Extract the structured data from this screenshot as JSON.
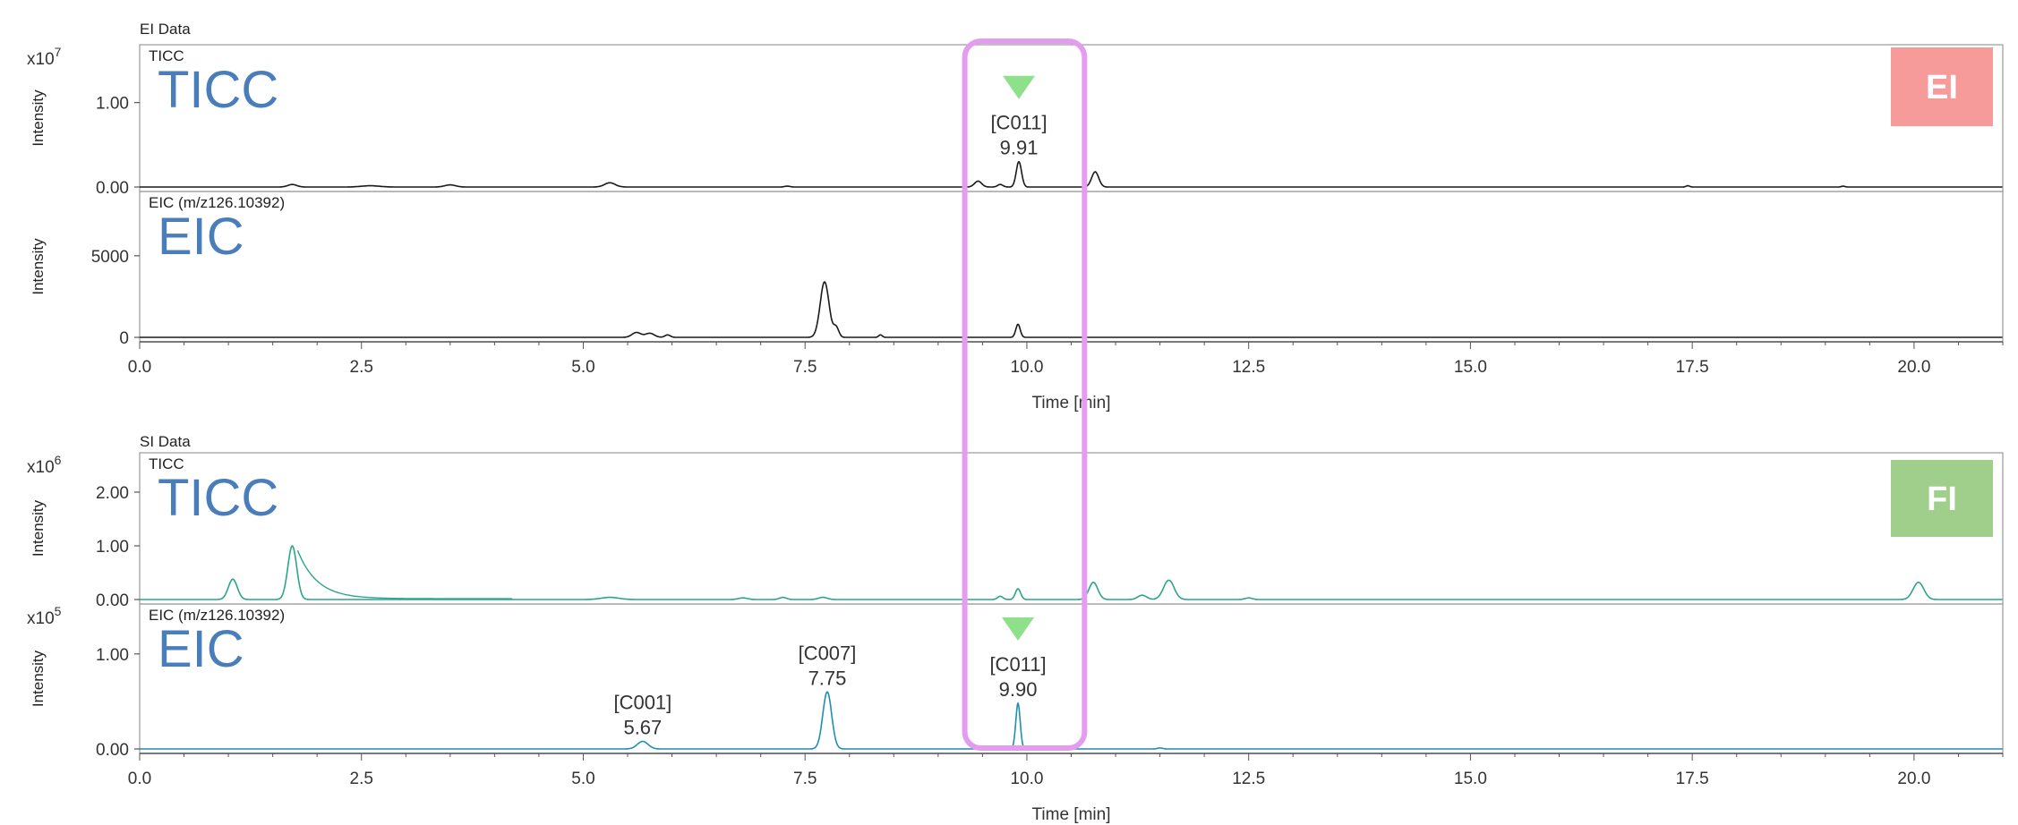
{
  "colors": {
    "ei_trace": "#1a1a1a",
    "si_trace": "#2aa58a",
    "si_eic_trace": "#1f8fb0",
    "peak_marker": "#8fe08a",
    "highlight_box": "#e49cf0",
    "ei_badge": "#f79a9a",
    "fi_badge": "#9fcf8a",
    "big_label": "#4a7ebb",
    "axis": "#555555"
  },
  "highlight": {
    "x_range": [
      9.3,
      10.65
    ]
  },
  "chart_data": [
    {
      "type": "line",
      "group_title": "EI Data",
      "badge": "EI",
      "xlabel": "Time [min]",
      "xlim": [
        0,
        21
      ],
      "xticks": [
        "0.0",
        "2.5",
        "5.0",
        "7.5",
        "10.0",
        "12.5",
        "15.0",
        "17.5",
        "20.0"
      ],
      "panels": [
        {
          "trace_label": "TICC",
          "big_label": "TICC",
          "ylabel": "Intensity",
          "exponent_base": "x10",
          "exponent_power": "7",
          "ylim": [
            0,
            1.6
          ],
          "yticks": [
            {
              "v": 0,
              "t": "0.00"
            },
            {
              "v": 1.0,
              "t": "1.00"
            }
          ],
          "color": "ei_trace",
          "peaks": [
            {
              "x": 1.72,
              "h": 0.03,
              "w": 0.05
            },
            {
              "x": 2.6,
              "h": 0.015,
              "w": 0.1
            },
            {
              "x": 3.5,
              "h": 0.025,
              "w": 0.06
            },
            {
              "x": 5.3,
              "h": 0.05,
              "w": 0.06
            },
            {
              "x": 7.3,
              "h": 0.01,
              "w": 0.03
            },
            {
              "x": 9.45,
              "h": 0.07,
              "w": 0.04
            },
            {
              "x": 9.7,
              "h": 0.03,
              "w": 0.03
            },
            {
              "x": 9.91,
              "h": 0.3,
              "w": 0.03
            },
            {
              "x": 10.77,
              "h": 0.18,
              "w": 0.04
            },
            {
              "x": 17.45,
              "h": 0.015,
              "w": 0.02
            },
            {
              "x": 19.2,
              "h": 0.01,
              "w": 0.02
            }
          ],
          "annotations": [
            {
              "x": 9.91,
              "id": "[C011]",
              "rt": "9.91",
              "marker": true
            }
          ]
        },
        {
          "trace_label": "EIC (m/z126.10392)",
          "big_label": "EIC",
          "ylabel": "Intensity",
          "exponent_base": "",
          "exponent_power": "",
          "ylim": [
            0,
            8500
          ],
          "yticks": [
            {
              "v": 0,
              "t": "0"
            },
            {
              "v": 5000,
              "t": "5000"
            }
          ],
          "color": "ei_trace",
          "peaks": [
            {
              "x": 5.6,
              "h": 300,
              "w": 0.05
            },
            {
              "x": 5.75,
              "h": 250,
              "w": 0.05
            },
            {
              "x": 5.95,
              "h": 150,
              "w": 0.03
            },
            {
              "x": 7.72,
              "h": 3400,
              "w": 0.05
            },
            {
              "x": 7.85,
              "h": 600,
              "w": 0.03
            },
            {
              "x": 8.35,
              "h": 150,
              "w": 0.02
            },
            {
              "x": 9.9,
              "h": 800,
              "w": 0.025
            }
          ],
          "annotations": []
        }
      ]
    },
    {
      "type": "line",
      "group_title": "SI Data",
      "badge": "FI",
      "xlabel": "Time [min]",
      "xlim": [
        0,
        21
      ],
      "xticks": [
        "0.0",
        "2.5",
        "5.0",
        "7.5",
        "10.0",
        "12.5",
        "15.0",
        "17.5",
        "20.0"
      ],
      "panels": [
        {
          "trace_label": "TICC",
          "big_label": "TICC",
          "ylabel": "Intensity",
          "exponent_base": "x10",
          "exponent_power": "6",
          "ylim": [
            0,
            2.6
          ],
          "yticks": [
            {
              "v": 0,
              "t": "0.00"
            },
            {
              "v": 1.0,
              "t": "1.00"
            },
            {
              "v": 2.0,
              "t": "2.00"
            }
          ],
          "color": "si_trace",
          "peaks": [
            {
              "x": 1.05,
              "h": 0.38,
              "w": 0.05
            },
            {
              "x": 1.72,
              "h": 1.0,
              "w": 0.05
            },
            {
              "x": 5.3,
              "h": 0.04,
              "w": 0.1
            },
            {
              "x": 6.8,
              "h": 0.03,
              "w": 0.05
            },
            {
              "x": 7.25,
              "h": 0.04,
              "w": 0.04
            },
            {
              "x": 7.7,
              "h": 0.04,
              "w": 0.05
            },
            {
              "x": 9.7,
              "h": 0.06,
              "w": 0.03
            },
            {
              "x": 9.9,
              "h": 0.2,
              "w": 0.03
            },
            {
              "x": 10.75,
              "h": 0.32,
              "w": 0.05
            },
            {
              "x": 11.3,
              "h": 0.08,
              "w": 0.05
            },
            {
              "x": 11.6,
              "h": 0.36,
              "w": 0.06
            },
            {
              "x": 12.5,
              "h": 0.03,
              "w": 0.04
            },
            {
              "x": 20.05,
              "h": 0.32,
              "w": 0.06
            }
          ],
          "annotations": []
        },
        {
          "trace_label": "EIC (m/z126.10392)",
          "big_label": "EIC",
          "ylabel": "Intensity",
          "exponent_base": "x10",
          "exponent_power": "5",
          "ylim": [
            0,
            1.45
          ],
          "yticks": [
            {
              "v": 0,
              "t": "0.00"
            },
            {
              "v": 1.0,
              "t": "1.00"
            }
          ],
          "color": "si_eic_trace",
          "peaks": [
            {
              "x": 5.67,
              "h": 0.08,
              "w": 0.06
            },
            {
              "x": 7.75,
              "h": 0.6,
              "w": 0.05
            },
            {
              "x": 9.9,
              "h": 0.48,
              "w": 0.025
            },
            {
              "x": 11.5,
              "h": 0.01,
              "w": 0.03
            }
          ],
          "annotations": [
            {
              "x": 5.67,
              "id": "[C001]",
              "rt": "5.67",
              "marker": false
            },
            {
              "x": 7.75,
              "id": "[C007]",
              "rt": "7.75",
              "marker": false
            },
            {
              "x": 9.9,
              "id": "[C011]",
              "rt": "9.90",
              "marker": true
            }
          ]
        }
      ]
    }
  ]
}
